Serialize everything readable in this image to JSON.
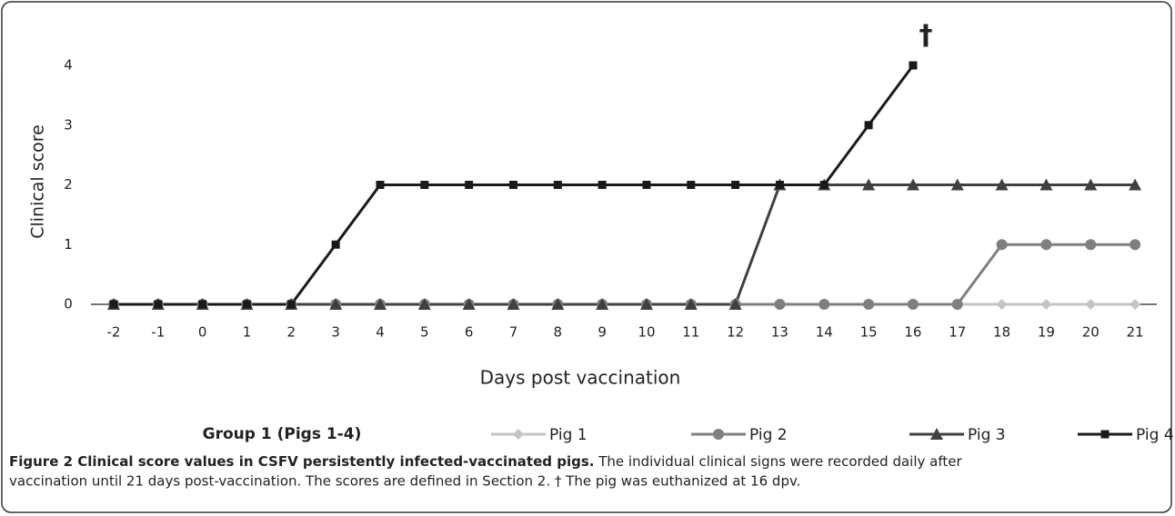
{
  "chart_data": {
    "type": "line",
    "y_label": "Clinical score",
    "x_label": "Days post vaccination",
    "legend_title": "Group 1 (Pigs 1-4)",
    "annotation": "†",
    "categories": [
      "-2",
      "-1",
      "0",
      "1",
      "2",
      "3",
      "4",
      "5",
      "6",
      "7",
      "8",
      "9",
      "10",
      "11",
      "12",
      "13",
      "14",
      "15",
      "16",
      "17",
      "18",
      "19",
      "20",
      "21"
    ],
    "ylim": [
      0,
      4
    ],
    "yticks": [
      0,
      1,
      2,
      3,
      4
    ],
    "series": [
      {
        "name": "Pig 1",
        "color": "#c4c4c4",
        "marker": "diamond",
        "values": [
          0,
          0,
          0,
          0,
          0,
          0,
          0,
          0,
          0,
          0,
          0,
          0,
          0,
          0,
          0,
          0,
          0,
          0,
          0,
          0,
          0,
          0,
          0,
          0
        ]
      },
      {
        "name": "Pig 2",
        "color": "#7f7f7f",
        "marker": "circle",
        "values": [
          0,
          0,
          0,
          0,
          0,
          0,
          0,
          0,
          0,
          0,
          0,
          0,
          0,
          0,
          0,
          0,
          0,
          0,
          0,
          0,
          1,
          1,
          1,
          1
        ]
      },
      {
        "name": "Pig 3",
        "color": "#404040",
        "marker": "triangle",
        "values": [
          0,
          0,
          0,
          0,
          0,
          0,
          0,
          0,
          0,
          0,
          0,
          0,
          0,
          0,
          0,
          2,
          2,
          2,
          2,
          2,
          2,
          2,
          2,
          2
        ]
      },
      {
        "name": "Pig 4",
        "color": "#1a1a1a",
        "marker": "square",
        "values": [
          0,
          0,
          0,
          0,
          0,
          1,
          2,
          2,
          2,
          2,
          2,
          2,
          2,
          2,
          2,
          2,
          2,
          3,
          4,
          null,
          null,
          null,
          null,
          null
        ]
      }
    ]
  },
  "caption": {
    "title": "Figure 2 Clinical score values in CSFV persistently infected-vaccinated pigs.",
    "lines": [
      "The individual clinical signs were recorded daily after",
      "vaccination until 21 days post-vaccination. The scores are defined in Section 2. † The pig was euthanized at 16 dpv."
    ]
  }
}
